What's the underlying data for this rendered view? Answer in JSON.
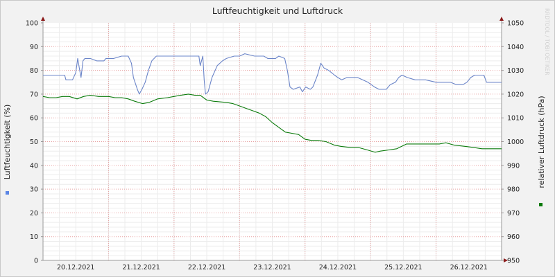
{
  "chart_data": {
    "type": "line",
    "title": "Luftfeuchtigkeit und Luftdruck",
    "watermark": "RRDTOOL / TOBI OETIKER",
    "left_axis": {
      "label": "Luftfeuchtigkeit (%)",
      "range": [
        0,
        100
      ],
      "ticks": [
        "0",
        "10",
        "20",
        "30",
        "40",
        "50",
        "60",
        "70",
        "80",
        "90",
        "100"
      ]
    },
    "right_axis": {
      "label": "relativer Luftdruck (hPa)",
      "range": [
        950,
        1050
      ],
      "ticks": [
        "950",
        "960",
        "970",
        "980",
        "990",
        "1000",
        "1010",
        "1020",
        "1030",
        "1040",
        "1050"
      ]
    },
    "x_axis": {
      "range_days": [
        0,
        7.0
      ],
      "date_labels": [
        "20.12.2021",
        "21.12.2021",
        "22.12.2021",
        "23.12.2021",
        "24.12.2021",
        "25.12.2021",
        "26.12.2021"
      ]
    },
    "grid": true,
    "series": [
      {
        "axis": "left",
        "color": "#6a84c8",
        "legend_marker_color": "#5b86e5",
        "points": [
          [
            0.0,
            78
          ],
          [
            0.33,
            78
          ],
          [
            0.35,
            76
          ],
          [
            0.45,
            76
          ],
          [
            0.5,
            79
          ],
          [
            0.53,
            85
          ],
          [
            0.56,
            80
          ],
          [
            0.58,
            77
          ],
          [
            0.61,
            84
          ],
          [
            0.64,
            85
          ],
          [
            0.72,
            85
          ],
          [
            0.82,
            84
          ],
          [
            0.93,
            84
          ],
          [
            0.96,
            85
          ],
          [
            1.08,
            85
          ],
          [
            1.2,
            86
          ],
          [
            1.3,
            86
          ],
          [
            1.35,
            83
          ],
          [
            1.38,
            77
          ],
          [
            1.44,
            72
          ],
          [
            1.47,
            70
          ],
          [
            1.51,
            72
          ],
          [
            1.56,
            75
          ],
          [
            1.61,
            80
          ],
          [
            1.66,
            84
          ],
          [
            1.73,
            86
          ],
          [
            2.0,
            86
          ],
          [
            2.38,
            86
          ],
          [
            2.4,
            82
          ],
          [
            2.44,
            86
          ],
          [
            2.46,
            76
          ],
          [
            2.48,
            70
          ],
          [
            2.52,
            71
          ],
          [
            2.58,
            77
          ],
          [
            2.66,
            82
          ],
          [
            2.74,
            84
          ],
          [
            2.8,
            85
          ],
          [
            2.92,
            86
          ],
          [
            3.0,
            86
          ],
          [
            3.08,
            87
          ],
          [
            3.23,
            86
          ],
          [
            3.37,
            86
          ],
          [
            3.43,
            85
          ],
          [
            3.55,
            85
          ],
          [
            3.6,
            86
          ],
          [
            3.69,
            85
          ],
          [
            3.73,
            80
          ],
          [
            3.77,
            73
          ],
          [
            3.82,
            72
          ],
          [
            3.92,
            73
          ],
          [
            3.96,
            71
          ],
          [
            4.01,
            73
          ],
          [
            4.08,
            72
          ],
          [
            4.12,
            73
          ],
          [
            4.19,
            78
          ],
          [
            4.24,
            83
          ],
          [
            4.29,
            81
          ],
          [
            4.36,
            80
          ],
          [
            4.45,
            78
          ],
          [
            4.5,
            77
          ],
          [
            4.56,
            76
          ],
          [
            4.64,
            77
          ],
          [
            4.8,
            77
          ],
          [
            4.96,
            75
          ],
          [
            5.06,
            73
          ],
          [
            5.13,
            72
          ],
          [
            5.24,
            72
          ],
          [
            5.3,
            74
          ],
          [
            5.38,
            75
          ],
          [
            5.43,
            77
          ],
          [
            5.48,
            78
          ],
          [
            5.56,
            77
          ],
          [
            5.68,
            76
          ],
          [
            5.84,
            76
          ],
          [
            6.0,
            75
          ],
          [
            6.22,
            75
          ],
          [
            6.31,
            74
          ],
          [
            6.41,
            74
          ],
          [
            6.47,
            75
          ],
          [
            6.53,
            77
          ],
          [
            6.59,
            78
          ],
          [
            6.73,
            78
          ],
          [
            6.77,
            75
          ],
          [
            7.0,
            75
          ]
        ]
      },
      {
        "axis": "right",
        "color": "#0a7a0a",
        "legend_marker_color": "#0a7a0a",
        "points": [
          [
            0.0,
            1019
          ],
          [
            0.1,
            1018.5
          ],
          [
            0.2,
            1018.5
          ],
          [
            0.3,
            1019
          ],
          [
            0.4,
            1019
          ],
          [
            0.52,
            1018
          ],
          [
            0.62,
            1019
          ],
          [
            0.72,
            1019.5
          ],
          [
            0.85,
            1019
          ],
          [
            1.0,
            1019
          ],
          [
            1.1,
            1018.5
          ],
          [
            1.2,
            1018.5
          ],
          [
            1.3,
            1018
          ],
          [
            1.4,
            1017
          ],
          [
            1.52,
            1016
          ],
          [
            1.62,
            1016.5
          ],
          [
            1.75,
            1018
          ],
          [
            1.9,
            1018.5
          ],
          [
            2.0,
            1019
          ],
          [
            2.1,
            1019.5
          ],
          [
            2.22,
            1020
          ],
          [
            2.32,
            1019.5
          ],
          [
            2.4,
            1019.5
          ],
          [
            2.5,
            1017.5
          ],
          [
            2.6,
            1017
          ],
          [
            2.8,
            1016.5
          ],
          [
            2.9,
            1016
          ],
          [
            3.0,
            1015
          ],
          [
            3.1,
            1014
          ],
          [
            3.2,
            1013
          ],
          [
            3.3,
            1012
          ],
          [
            3.4,
            1010.5
          ],
          [
            3.5,
            1008
          ],
          [
            3.6,
            1006
          ],
          [
            3.7,
            1004
          ],
          [
            3.8,
            1003.5
          ],
          [
            3.9,
            1003
          ],
          [
            4.0,
            1001
          ],
          [
            4.1,
            1000.5
          ],
          [
            4.2,
            1000.5
          ],
          [
            4.32,
            1000
          ],
          [
            4.45,
            998.5
          ],
          [
            4.55,
            998
          ],
          [
            4.7,
            997.5
          ],
          [
            4.82,
            997.5
          ],
          [
            4.95,
            996.5
          ],
          [
            5.07,
            995.5
          ],
          [
            5.15,
            996
          ],
          [
            5.28,
            996.5
          ],
          [
            5.4,
            997
          ],
          [
            5.55,
            999
          ],
          [
            5.68,
            999
          ],
          [
            5.8,
            999
          ],
          [
            5.92,
            999
          ],
          [
            6.05,
            999
          ],
          [
            6.15,
            999.5
          ],
          [
            6.28,
            998.5
          ],
          [
            6.45,
            998
          ],
          [
            6.58,
            997.5
          ],
          [
            6.7,
            997
          ],
          [
            7.0,
            997
          ]
        ]
      }
    ]
  }
}
